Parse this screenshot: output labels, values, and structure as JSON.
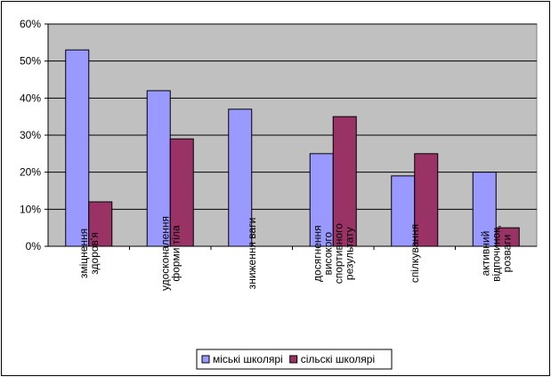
{
  "chart_data": {
    "type": "bar",
    "categories": [
      [
        "зміцнення",
        "здоров'я"
      ],
      [
        "удосконалення",
        "форми тіла"
      ],
      [
        "зниження ваги"
      ],
      [
        "досягнення",
        "високого",
        "спортивного",
        "результату"
      ],
      [
        "спілкування"
      ],
      [
        "активний",
        "відпочинок,",
        "розваги"
      ]
    ],
    "series": [
      {
        "name": "міські школярі",
        "values": [
          53,
          42,
          37,
          25,
          19,
          20
        ],
        "color": "#9999ff"
      },
      {
        "name": "сільскі школярі",
        "values": [
          12,
          29,
          null,
          35,
          25,
          5
        ],
        "color": "#993366"
      }
    ],
    "ylim": [
      0,
      60
    ],
    "yticks": [
      "0%",
      "10%",
      "20%",
      "30%",
      "40%",
      "50%",
      "60%"
    ],
    "grid": true,
    "legend_position": "bottom",
    "plot_background": "#c0c0c0"
  }
}
